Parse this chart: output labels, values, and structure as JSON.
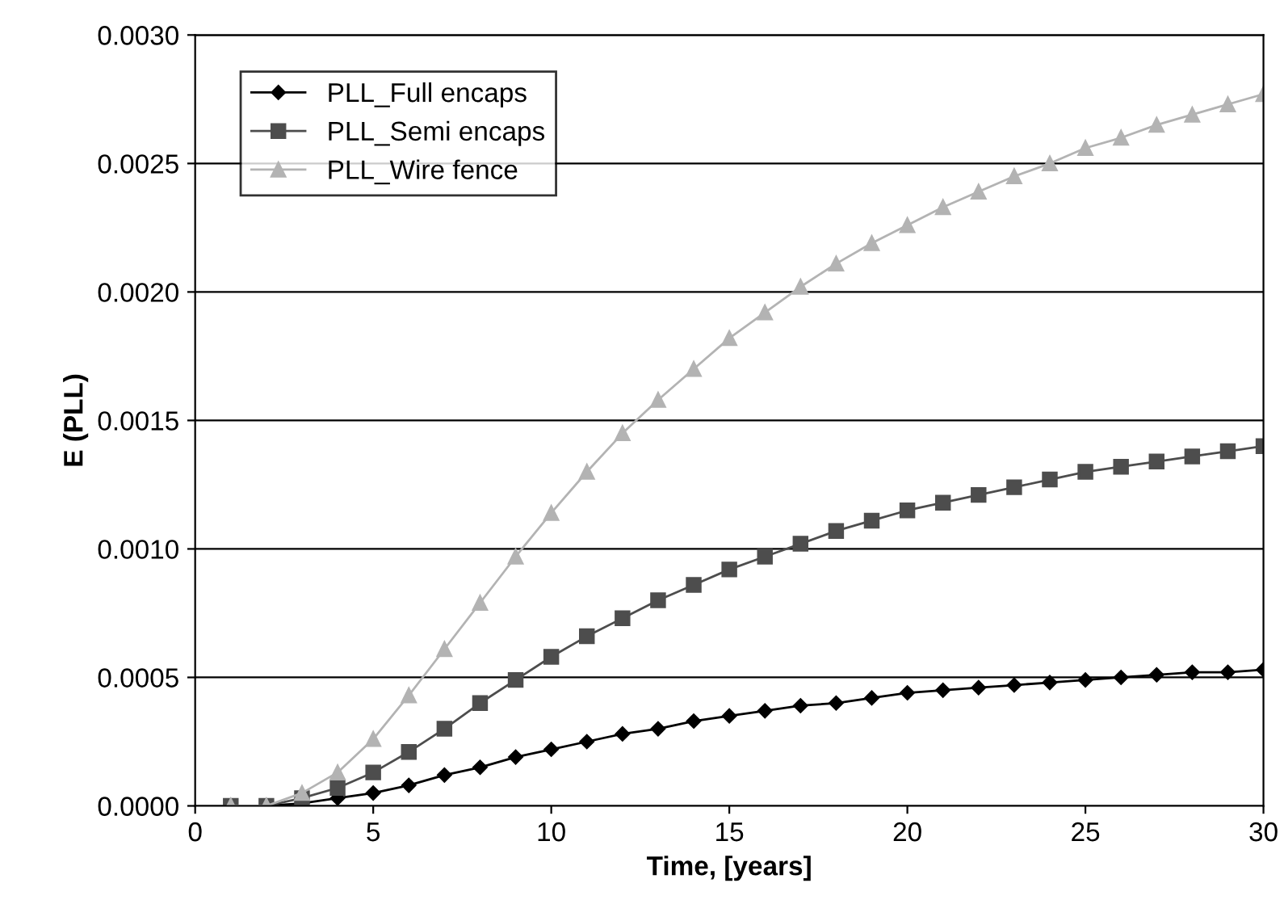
{
  "chart_data": {
    "type": "line",
    "xlabel": "Time, [years]",
    "ylabel": "E (PLL)",
    "x": [
      1,
      2,
      3,
      4,
      5,
      6,
      7,
      8,
      9,
      10,
      11,
      12,
      13,
      14,
      15,
      16,
      17,
      18,
      19,
      20,
      21,
      22,
      23,
      24,
      25,
      26,
      27,
      28,
      29,
      30
    ],
    "series": [
      {
        "name": "PLL_Full encaps",
        "color": "#000000",
        "marker": "diamond",
        "values": [
          0,
          0,
          1e-05,
          3e-05,
          5e-05,
          8e-05,
          0.00012,
          0.00015,
          0.00019,
          0.00022,
          0.00025,
          0.00028,
          0.0003,
          0.00033,
          0.00035,
          0.00037,
          0.00039,
          0.0004,
          0.00042,
          0.00044,
          0.00045,
          0.00046,
          0.00047,
          0.00048,
          0.00049,
          0.0005,
          0.00051,
          0.00052,
          0.00052,
          0.00053
        ]
      },
      {
        "name": "PLL_Semi encaps",
        "color": "#4d4d4d",
        "marker": "square",
        "values": [
          0,
          0,
          3e-05,
          7e-05,
          0.00013,
          0.00021,
          0.0003,
          0.0004,
          0.00049,
          0.00058,
          0.00066,
          0.00073,
          0.0008,
          0.00086,
          0.00092,
          0.00097,
          0.00102,
          0.00107,
          0.00111,
          0.00115,
          0.00118,
          0.00121,
          0.00124,
          0.00127,
          0.0013,
          0.00132,
          0.00134,
          0.00136,
          0.00138,
          0.0014
        ]
      },
      {
        "name": "PLL_Wire fence",
        "color": "#b3b3b3",
        "marker": "triangle",
        "values": [
          0,
          0,
          5e-05,
          0.00013,
          0.00026,
          0.00043,
          0.00061,
          0.00079,
          0.00097,
          0.00114,
          0.0013,
          0.00145,
          0.00158,
          0.0017,
          0.00182,
          0.00192,
          0.00202,
          0.00211,
          0.00219,
          0.00226,
          0.00233,
          0.00239,
          0.00245,
          0.0025,
          0.00256,
          0.0026,
          0.00265,
          0.00269,
          0.00273,
          0.00277
        ]
      }
    ],
    "xlim": [
      0,
      30
    ],
    "xticks": [
      0,
      5,
      10,
      15,
      20,
      25,
      30
    ],
    "ylim": [
      0,
      0.003
    ],
    "yticks": [
      {
        "value": 0,
        "label": "0.0000"
      },
      {
        "value": 0.0005,
        "label": "0.0005"
      },
      {
        "value": 0.001,
        "label": "0.0010"
      },
      {
        "value": 0.0015,
        "label": "0.0015"
      },
      {
        "value": 0.002,
        "label": "0.0020"
      },
      {
        "value": 0.0025,
        "label": "0.0025"
      },
      {
        "value": 0.003,
        "label": "0.0030"
      }
    ],
    "grid": "y",
    "legend": "top left",
    "line_style": "solid"
  }
}
